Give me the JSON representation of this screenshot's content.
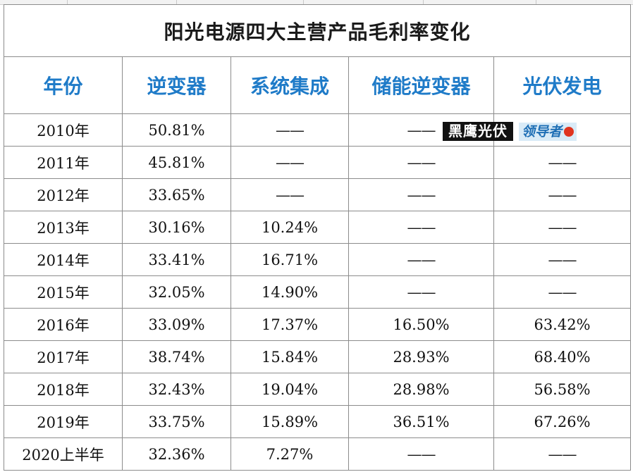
{
  "chart_data": {
    "type": "table",
    "title": "阳光电源四大主营产品毛利率变化",
    "columns": [
      "年份",
      "逆变器",
      "系统集成",
      "储能逆变器",
      "光伏发电"
    ],
    "rows": [
      [
        "2010年",
        "50.81%",
        "——",
        "——",
        "——"
      ],
      [
        "2011年",
        "45.81%",
        "——",
        "——",
        "——"
      ],
      [
        "2012年",
        "33.65%",
        "——",
        "——",
        "——"
      ],
      [
        "2013年",
        "30.16%",
        "10.24%",
        "——",
        "——"
      ],
      [
        "2014年",
        "33.41%",
        "16.71%",
        "——",
        "——"
      ],
      [
        "2015年",
        "32.05%",
        "14.90%",
        "——",
        "——"
      ],
      [
        "2016年",
        "33.09%",
        "17.37%",
        "16.50%",
        "63.42%"
      ],
      [
        "2017年",
        "38.74%",
        "15.84%",
        "28.93%",
        "68.40%"
      ],
      [
        "2018年",
        "32.43%",
        "19.04%",
        "28.98%",
        "56.58%"
      ],
      [
        "2019年",
        "33.75%",
        "15.89%",
        "36.51%",
        "67.26%"
      ],
      [
        "2020上半年",
        "32.36%",
        "7.27%",
        "——",
        "——"
      ]
    ]
  },
  "watermark": {
    "brand_text": "黑鹰光伏",
    "logo_text": "领导者",
    "colors": {
      "brand_bg": "#111111",
      "logo_bg": "#d9ebf7",
      "logo_text": "#1f6fb5",
      "badge": "#e0341f"
    }
  },
  "colors": {
    "header_text": "#1f7bc8",
    "grid": "#8c8c8c",
    "title_text": "#1a1a1a"
  }
}
